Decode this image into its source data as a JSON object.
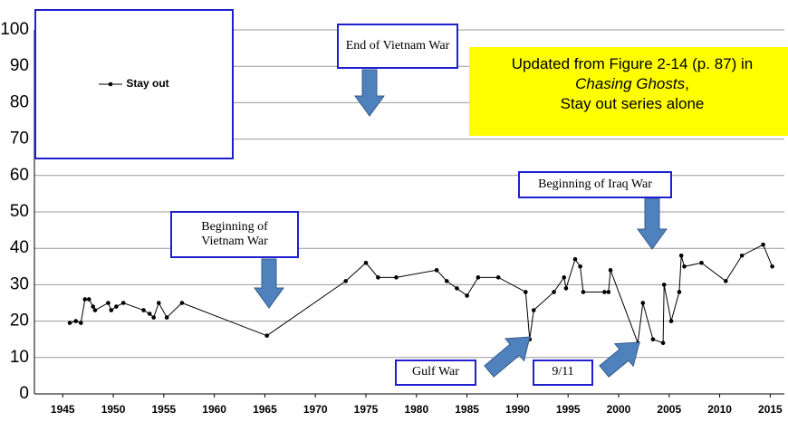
{
  "chart_data": {
    "type": "line",
    "series": [
      {
        "name": "Stay out",
        "color": "#000000",
        "x": [
          1945.7,
          1946.3,
          1946.8,
          1947.2,
          1947.6,
          1948.0,
          1948.2,
          1949.5,
          1949.8,
          1950.3,
          1951,
          1953,
          1953.6,
          1954,
          1954.5,
          1955.3,
          1956.8,
          1965.2,
          1973,
          1975,
          1976.2,
          1978,
          1982,
          1983,
          1984,
          1985,
          1986.1,
          1988.1,
          1990.8,
          1991.2,
          1991.6,
          1993.6,
          1994.6,
          1994.8,
          1995.7,
          1996.2,
          1996.5,
          1998.6,
          1999,
          1999.2,
          2001.9,
          2002.4,
          2003.4,
          2004.4,
          2004.5,
          2005.2,
          2006,
          2006.2,
          2006.5,
          2008.2,
          2010.6,
          2012.2,
          2014.3,
          2015.2
        ],
        "values": [
          19.5,
          20,
          19.5,
          26,
          26,
          24,
          23,
          25,
          23,
          24,
          25,
          23,
          22,
          21,
          25,
          21,
          25,
          16,
          31,
          36,
          32,
          32,
          34,
          31,
          29,
          27,
          32,
          32,
          28,
          15,
          23,
          28,
          32,
          29,
          37,
          35,
          28,
          28,
          28,
          34,
          14,
          25,
          15,
          14,
          30,
          20,
          28,
          38,
          35,
          36,
          31,
          38,
          41,
          35
        ]
      }
    ],
    "xlim": [
      1942.2,
      2016.4
    ],
    "xticks": [
      1945,
      1950,
      1955,
      1960,
      1965,
      1970,
      1975,
      1980,
      1985,
      1990,
      1995,
      2000,
      2005,
      2010,
      2015
    ],
    "ylim": [
      0,
      100
    ],
    "yticks": [
      0,
      10,
      20,
      30,
      40,
      50,
      60,
      70,
      80,
      90,
      100
    ],
    "grid": true,
    "annotations": {
      "end_vietnam": "End of Vietnam War",
      "begin_vietnam": "Beginning of Vietnam War",
      "iraq": "Beginning of Iraq War",
      "gulf": "Gulf War",
      "nine_eleven": "9/11"
    },
    "note": {
      "line1": "Updated from Figure 2-14 (p. 87) in",
      "italic": "Chasing Ghosts",
      "after": ",",
      "line3": "Stay out series alone"
    }
  }
}
